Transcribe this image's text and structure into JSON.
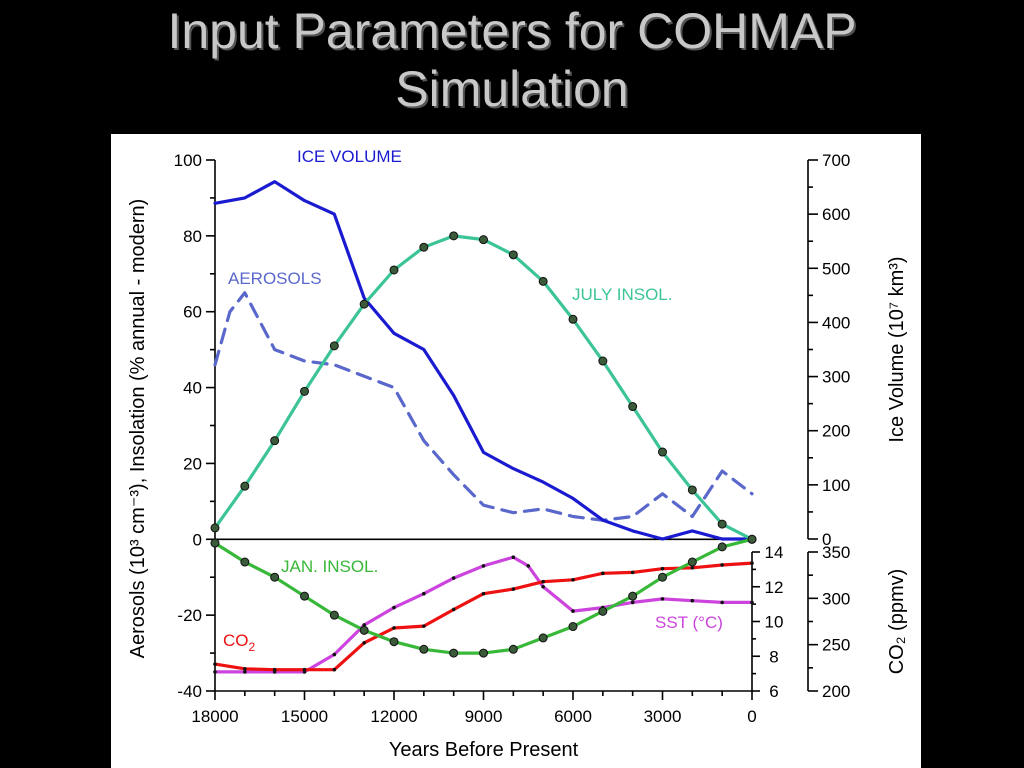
{
  "slide": {
    "title_line1": "Input Parameters for COHMAP",
    "title_line2": "Simulation"
  },
  "chart_data": {
    "type": "line",
    "x": {
      "label": "Years Before Present",
      "range": [
        18000,
        0
      ],
      "ticks": [
        "18000",
        "15000",
        "12000",
        "9000",
        "6000",
        "3000",
        "0"
      ],
      "tick_values": [
        18000,
        15000,
        12000,
        9000,
        6000,
        3000,
        0
      ]
    },
    "y_left": {
      "label": "Aerosols (10³ cm⁻³), Insolation (% annual - modern)",
      "range": [
        -40,
        100
      ],
      "ticks": [
        "100",
        "80",
        "60",
        "40",
        "20",
        "0",
        "-20",
        "-40"
      ],
      "tick_values": [
        100,
        80,
        60,
        40,
        20,
        0,
        -20,
        -40
      ]
    },
    "y_right_top": {
      "label": "Ice Volume  (10⁷ km³)",
      "range": [
        0,
        700
      ],
      "ticks": [
        "700",
        "600",
        "500",
        "400",
        "300",
        "200",
        "100",
        "0"
      ],
      "tick_values": [
        700,
        600,
        500,
        400,
        300,
        200,
        100,
        0
      ]
    },
    "y_right_inner": {
      "label": "SST (°C)",
      "range": [
        6,
        14
      ],
      "ticks": [
        "14",
        "12",
        "10",
        "8",
        "6"
      ],
      "tick_values": [
        14,
        12,
        10,
        8,
        6
      ]
    },
    "y_right_outer": {
      "label": "CO₂ (ppmv)",
      "range": [
        200,
        350
      ],
      "ticks": [
        "350",
        "300",
        "250",
        "200"
      ],
      "tick_values": [
        350,
        300,
        250,
        200
      ]
    },
    "series": [
      {
        "name": "ICE VOLUME",
        "color": "#1a1ad0",
        "dash": "solid",
        "axis": "ice",
        "x": [
          18000,
          17000,
          16000,
          15000,
          14000,
          13000,
          12000,
          11000,
          10000,
          9000,
          8000,
          7000,
          6000,
          5000,
          4000,
          3000,
          2000,
          1000,
          0
        ],
        "values": [
          620,
          630,
          660,
          625,
          600,
          445,
          380,
          350,
          265,
          160,
          130,
          105,
          75,
          35,
          15,
          0,
          15,
          0,
          0
        ]
      },
      {
        "name": "AEROSOLS",
        "color": "#5a68cc",
        "dash": "dashed",
        "axis": "left",
        "x": [
          18000,
          17500,
          17000,
          16000,
          15000,
          14000,
          13000,
          12000,
          11000,
          10000,
          9000,
          8000,
          7000,
          6000,
          5000,
          4000,
          3000,
          2000,
          1000,
          0
        ],
        "values": [
          46,
          60,
          65,
          50,
          47,
          46,
          43,
          40,
          26,
          17,
          9,
          7,
          8,
          6,
          5,
          6,
          12,
          6,
          18,
          12
        ]
      },
      {
        "name": "JULY INSOL.",
        "color": "#3cc498",
        "dash": "solid",
        "axis": "left",
        "markers": true,
        "x": [
          18000,
          17000,
          16000,
          15000,
          14000,
          13000,
          12000,
          11000,
          10000,
          9000,
          8000,
          7000,
          6000,
          5000,
          4000,
          3000,
          2000,
          1000,
          0
        ],
        "values": [
          3,
          14,
          26,
          39,
          51,
          62,
          71,
          77,
          80,
          79,
          75,
          68,
          58,
          47,
          35,
          23,
          13,
          4,
          0
        ]
      },
      {
        "name": "JAN. INSOL.",
        "color": "#38b838",
        "dash": "solid",
        "axis": "left",
        "markers": true,
        "x": [
          18000,
          17000,
          16000,
          15000,
          14000,
          13000,
          12000,
          11000,
          10000,
          9000,
          8000,
          7000,
          6000,
          5000,
          4000,
          3000,
          2000,
          1000,
          0
        ],
        "values": [
          -1,
          -6,
          -10,
          -15,
          -20,
          -24,
          -27,
          -29,
          -30,
          -30,
          -29,
          -26,
          -23,
          -19,
          -15,
          -10,
          -6,
          -2,
          0
        ]
      },
      {
        "name": "CO2",
        "label_main": "CO",
        "label_sub": "2",
        "color": "#ee1111",
        "dash": "solid",
        "axis": "co2",
        "x": [
          18000,
          17000,
          16000,
          15000,
          14000,
          13000,
          12000,
          11000,
          10000,
          9000,
          8000,
          7000,
          6000,
          5000,
          4000,
          3000,
          2000,
          1000,
          0
        ],
        "values": [
          229,
          224,
          223,
          223,
          223,
          252,
          268,
          270,
          288,
          305,
          310,
          318,
          320,
          327,
          328,
          332,
          333,
          336,
          338
        ]
      },
      {
        "name": "SST (°C)",
        "color": "#cc44dd",
        "dash": "solid",
        "axis": "sst",
        "x": [
          18000,
          17000,
          16000,
          15000,
          14000,
          13000,
          12000,
          11000,
          10000,
          9000,
          8000,
          7500,
          7000,
          6000,
          5000,
          4000,
          3000,
          2000,
          1000,
          0
        ],
        "values": [
          7.1,
          7.1,
          7.1,
          7.1,
          8.1,
          9.8,
          10.8,
          11.6,
          12.5,
          13.2,
          13.7,
          13.2,
          12.0,
          10.6,
          10.8,
          11.1,
          11.3,
          11.2,
          11.1,
          11.1
        ]
      }
    ]
  }
}
